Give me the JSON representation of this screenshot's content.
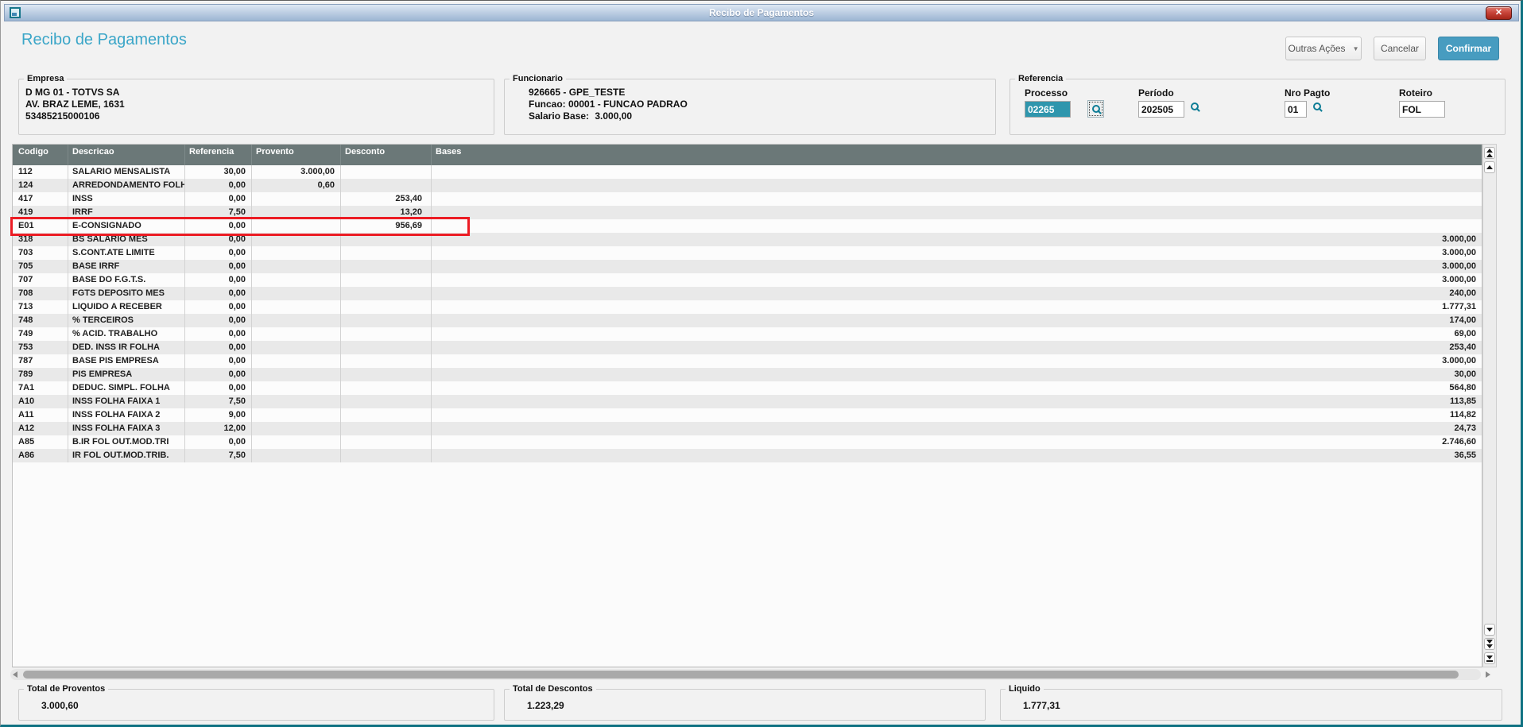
{
  "window": {
    "title": "Recibo de Pagamentos",
    "close_glyph": "✕"
  },
  "header": {
    "title": "Recibo de Pagamentos",
    "outras_acoes_label": "Outras Ações",
    "outras_acoes_arrow": "▼",
    "cancelar_label": "Cancelar",
    "confirmar_label": "Confirmar"
  },
  "empresa": {
    "legend": "Empresa",
    "lines": [
      "D MG 01  - TOTVS SA",
      "AV. BRAZ LEME, 1631",
      "53485215000106"
    ]
  },
  "funcionario": {
    "legend": "Funcionario",
    "line1": "926665 - GPE_TESTE",
    "line2": "Funcao: 00001 - FUNCAO PADRAO",
    "salario_label": "Salario Base:",
    "salario_value": "3.000,00"
  },
  "referencia": {
    "legend": "Referencia",
    "fields": [
      {
        "label": "Processo",
        "value": "02265",
        "lookup": true,
        "selected": true
      },
      {
        "label": "Período",
        "value": "202505",
        "lookup": true,
        "selected": false
      },
      {
        "label": "Nro Pagto",
        "value": "01",
        "lookup": true,
        "selected": false
      },
      {
        "label": "Roteiro",
        "value": "FOL",
        "lookup": false,
        "selected": false
      }
    ]
  },
  "grid": {
    "columns": [
      "Codigo",
      "Descricao",
      "Referencia",
      "Provento",
      "Desconto",
      "Bases"
    ],
    "rows": [
      {
        "codigo": "112",
        "descricao": "SALARIO MENSALISTA",
        "referencia": "30,00",
        "provento": "3.000,00",
        "desconto": "",
        "bases": "",
        "highlighted": false
      },
      {
        "codigo": "124",
        "descricao": "ARREDONDAMENTO FOLH",
        "referencia": "0,00",
        "provento": "0,60",
        "desconto": "",
        "bases": "",
        "highlighted": false
      },
      {
        "codigo": "417",
        "descricao": "INSS",
        "referencia": "0,00",
        "provento": "",
        "desconto": "253,40",
        "bases": "",
        "highlighted": false
      },
      {
        "codigo": "419",
        "descricao": "IRRF",
        "referencia": "7,50",
        "provento": "",
        "desconto": "13,20",
        "bases": "",
        "highlighted": false
      },
      {
        "codigo": "E01",
        "descricao": "E-CONSIGNADO",
        "referencia": "0,00",
        "provento": "",
        "desconto": "956,69",
        "bases": "",
        "highlighted": true
      },
      {
        "codigo": "318",
        "descricao": "BS SALARIO MES",
        "referencia": "0,00",
        "provento": "",
        "desconto": "",
        "bases": "3.000,00",
        "highlighted": false
      },
      {
        "codigo": "703",
        "descricao": "S.CONT.ATE LIMITE",
        "referencia": "0,00",
        "provento": "",
        "desconto": "",
        "bases": "3.000,00",
        "highlighted": false
      },
      {
        "codigo": "705",
        "descricao": "BASE IRRF",
        "referencia": "0,00",
        "provento": "",
        "desconto": "",
        "bases": "3.000,00",
        "highlighted": false
      },
      {
        "codigo": "707",
        "descricao": "BASE DO F.G.T.S.",
        "referencia": "0,00",
        "provento": "",
        "desconto": "",
        "bases": "3.000,00",
        "highlighted": false
      },
      {
        "codigo": "708",
        "descricao": "FGTS DEPOSITO MES",
        "referencia": "0,00",
        "provento": "",
        "desconto": "",
        "bases": "240,00",
        "highlighted": false
      },
      {
        "codigo": "713",
        "descricao": "LIQUIDO A RECEBER",
        "referencia": "0,00",
        "provento": "",
        "desconto": "",
        "bases": "1.777,31",
        "highlighted": false
      },
      {
        "codigo": "748",
        "descricao": "% TERCEIROS",
        "referencia": "0,00",
        "provento": "",
        "desconto": "",
        "bases": "174,00",
        "highlighted": false
      },
      {
        "codigo": "749",
        "descricao": "% ACID. TRABALHO",
        "referencia": "0,00",
        "provento": "",
        "desconto": "",
        "bases": "69,00",
        "highlighted": false
      },
      {
        "codigo": "753",
        "descricao": "DED. INSS IR FOLHA",
        "referencia": "0,00",
        "provento": "",
        "desconto": "",
        "bases": "253,40",
        "highlighted": false
      },
      {
        "codigo": "787",
        "descricao": "BASE PIS EMPRESA",
        "referencia": "0,00",
        "provento": "",
        "desconto": "",
        "bases": "3.000,00",
        "highlighted": false
      },
      {
        "codigo": "789",
        "descricao": "PIS EMPRESA",
        "referencia": "0,00",
        "provento": "",
        "desconto": "",
        "bases": "30,00",
        "highlighted": false
      },
      {
        "codigo": "7A1",
        "descricao": "DEDUC. SIMPL. FOLHA",
        "referencia": "0,00",
        "provento": "",
        "desconto": "",
        "bases": "564,80",
        "highlighted": false
      },
      {
        "codigo": "A10",
        "descricao": "INSS FOLHA FAIXA 1",
        "referencia": "7,50",
        "provento": "",
        "desconto": "",
        "bases": "113,85",
        "highlighted": false
      },
      {
        "codigo": "A11",
        "descricao": "INSS FOLHA FAIXA 2",
        "referencia": "9,00",
        "provento": "",
        "desconto": "",
        "bases": "114,82",
        "highlighted": false
      },
      {
        "codigo": "A12",
        "descricao": "INSS FOLHA FAIXA 3",
        "referencia": "12,00",
        "provento": "",
        "desconto": "",
        "bases": "24,73",
        "highlighted": false
      },
      {
        "codigo": "A85",
        "descricao": "B.IR FOL OUT.MOD.TRI",
        "referencia": "0,00",
        "provento": "",
        "desconto": "",
        "bases": "2.746,60",
        "highlighted": false
      },
      {
        "codigo": "A86",
        "descricao": "IR FOL OUT.MOD.TRIB.",
        "referencia": "7,50",
        "provento": "",
        "desconto": "",
        "bases": "36,55",
        "highlighted": false
      }
    ]
  },
  "totals": [
    {
      "legend": "Total de Proventos",
      "value": "3.000,60"
    },
    {
      "legend": "Total de Descontos",
      "value": "1.223,29"
    },
    {
      "legend": "Liquido",
      "value": "1.777,31"
    }
  ],
  "colors": {
    "accent": "#3ba6c8",
    "confirm_button": "#479cc0",
    "grid_header_bg": "#6b7878",
    "highlight_border": "#ec1c24",
    "selection_bg": "#2f96ad"
  }
}
